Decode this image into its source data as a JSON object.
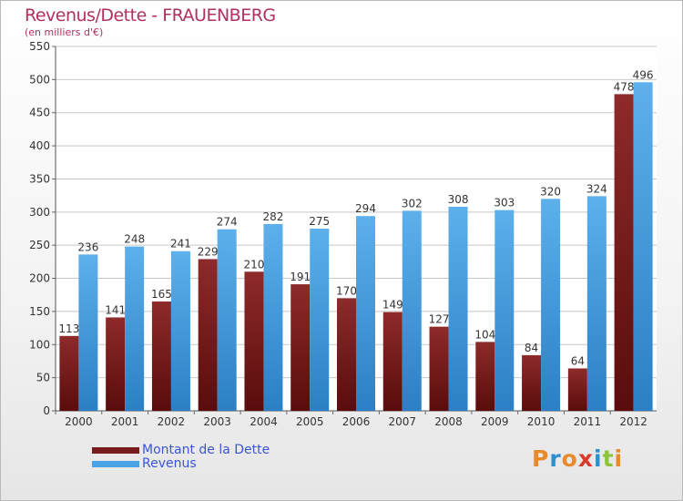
{
  "chart_data": {
    "type": "bar",
    "title": "Revenus/Dette - FRAUENBERG",
    "subtitle": "(en milliers d'€)",
    "categories": [
      "2000",
      "2001",
      "2002",
      "2003",
      "2004",
      "2005",
      "2006",
      "2007",
      "2008",
      "2009",
      "2010",
      "2011",
      "2012"
    ],
    "series": [
      {
        "name": "Montant de la Dette",
        "color": "#7a1c1c",
        "values": [
          113,
          141,
          165,
          229,
          210,
          191,
          170,
          149,
          127,
          104,
          84,
          64,
          478
        ]
      },
      {
        "name": "Revenus",
        "color": "#4aa3e4",
        "values": [
          236,
          248,
          241,
          274,
          282,
          275,
          294,
          302,
          308,
          303,
          320,
          324,
          496
        ]
      }
    ],
    "ylim": [
      0,
      550
    ],
    "yticks": [
      0,
      50,
      100,
      150,
      200,
      250,
      300,
      350,
      400,
      450,
      500,
      550
    ],
    "grid": true,
    "legend": "bottom-left"
  },
  "logo": {
    "text": "Proxiti",
    "colors": [
      "#e8892b",
      "#2e8fd0",
      "#e8892b",
      "#d83a2a",
      "#2e8fd0",
      "#8cc43c",
      "#e8892b"
    ]
  }
}
